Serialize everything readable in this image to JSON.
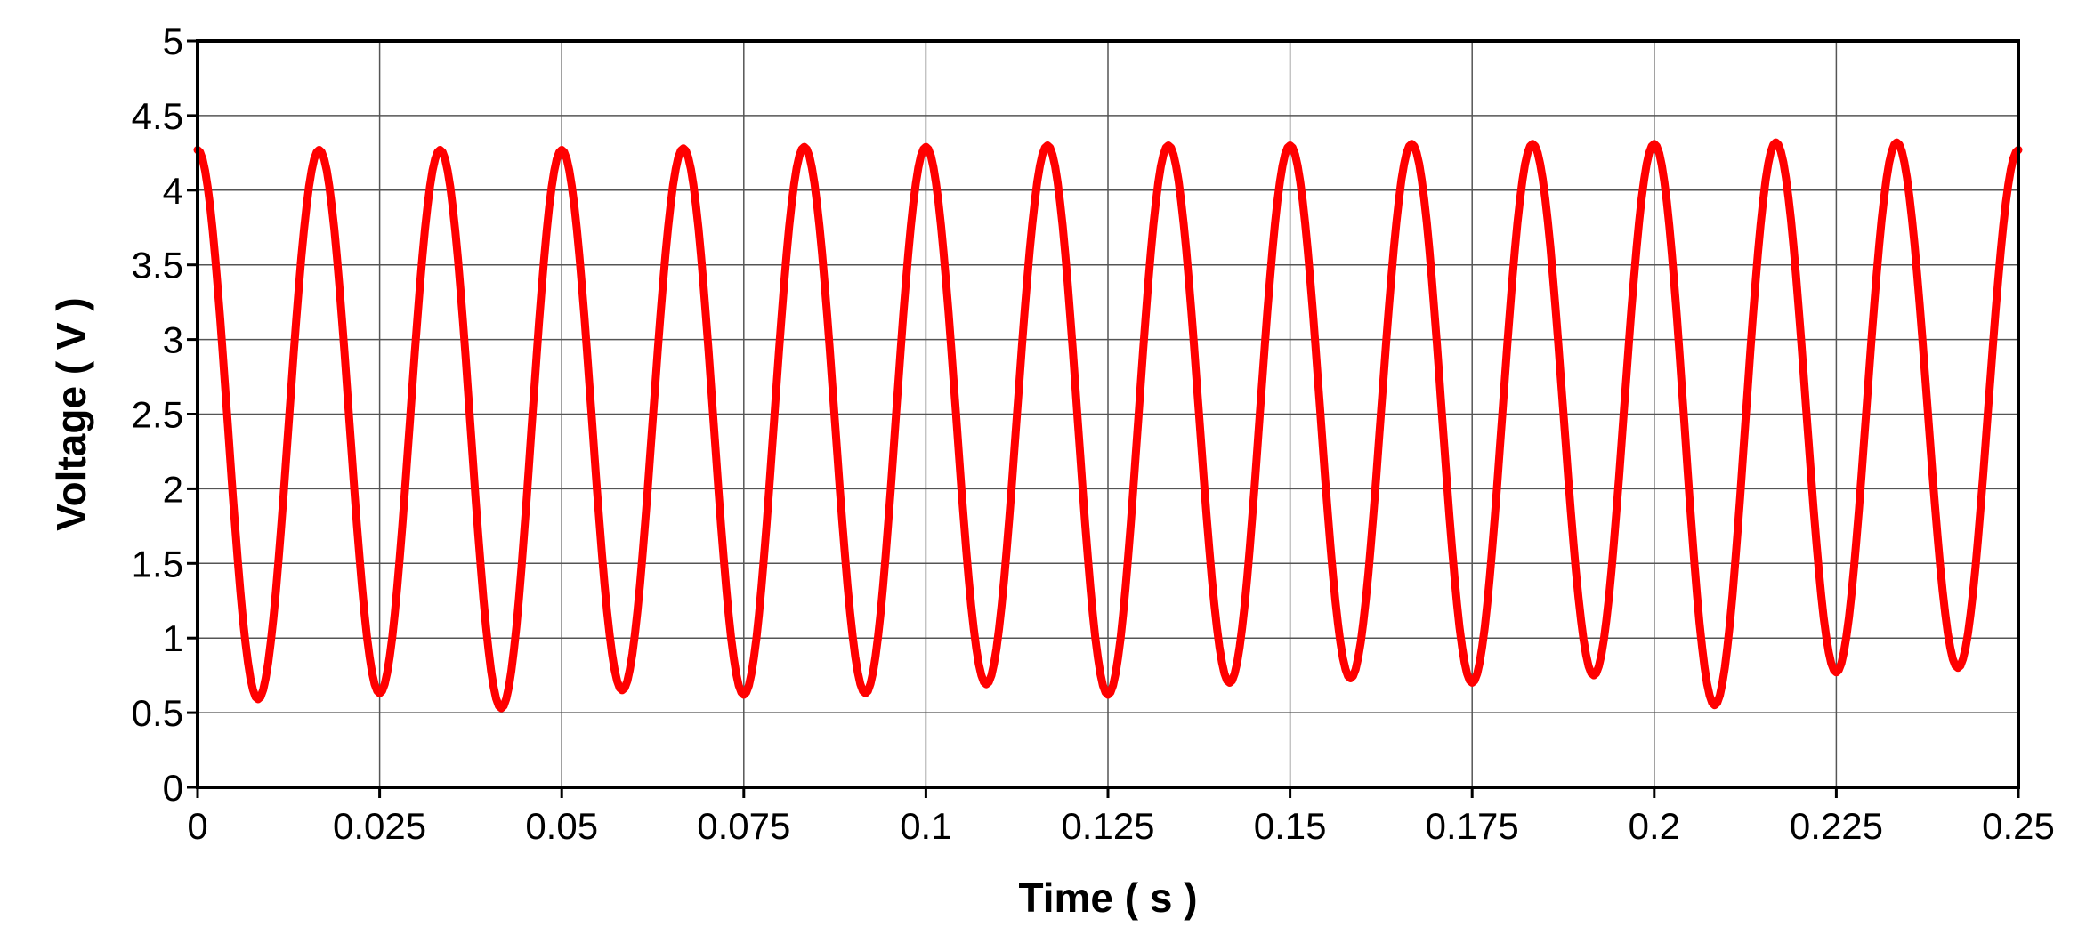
{
  "chart_data": {
    "type": "line",
    "title": "",
    "xlabel": "Time ( s )",
    "ylabel": "Voltage ( V )",
    "xlim": [
      0,
      0.25
    ],
    "ylim": [
      0,
      5
    ],
    "grid": true,
    "xticks": [
      0,
      0.025,
      0.05,
      0.075,
      0.1,
      0.125,
      0.15,
      0.175,
      0.2,
      0.225,
      0.25
    ],
    "xtick_labels": [
      "0",
      "0.025",
      "0.05",
      "0.075",
      "0.1",
      "0.125",
      "0.15",
      "0.175",
      "0.2",
      "0.225",
      "0.25"
    ],
    "yticks": [
      0,
      0.5,
      1,
      1.5,
      2,
      2.5,
      3,
      3.5,
      4,
      4.5,
      5
    ],
    "ytick_labels": [
      "0",
      "0.5",
      "1",
      "1.5",
      "2",
      "2.5",
      "3",
      "3.5",
      "4",
      "4.5",
      "5"
    ],
    "series": [
      {
        "color": "#ff0000",
        "x": [
          0,
          0.0083,
          0.0167,
          0.025,
          0.0333,
          0.0417,
          0.05,
          0.0583,
          0.0667,
          0.075,
          0.0833,
          0.0917,
          0.1,
          0.1083,
          0.1167,
          0.125,
          0.1333,
          0.1417,
          0.15,
          0.1583,
          0.1667,
          0.175,
          0.1833,
          0.1917,
          0.2,
          0.2083,
          0.2167,
          0.225,
          0.2333,
          0.2417,
          0.25
        ],
        "y": [
          4.27,
          0.59,
          4.27,
          0.63,
          4.27,
          0.53,
          4.27,
          0.65,
          4.28,
          0.62,
          4.29,
          0.63,
          4.29,
          0.69,
          4.3,
          0.62,
          4.3,
          0.7,
          4.3,
          0.73,
          4.31,
          0.7,
          4.31,
          0.75,
          4.31,
          0.55,
          4.32,
          0.77,
          4.32,
          0.8,
          4.27
        ]
      }
    ]
  }
}
